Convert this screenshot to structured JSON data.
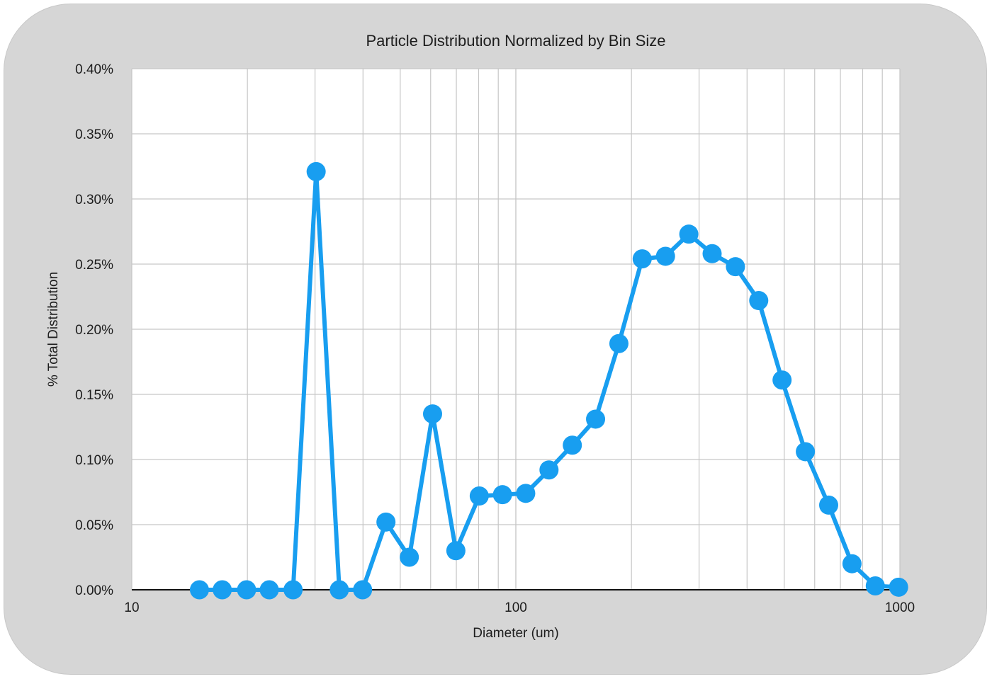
{
  "chart_data": {
    "type": "line",
    "title": "Particle Distribution Normalized by Bin Size",
    "xlabel": "Diameter (um)",
    "ylabel": "% Total Distribution",
    "xscale": "log",
    "xlim": [
      10,
      1000
    ],
    "ylim": [
      0,
      0.4
    ],
    "x_ticks": [
      10,
      100,
      1000
    ],
    "x_tick_labels": [
      "10",
      "100",
      "1000"
    ],
    "y_ticks": [
      0,
      0.05,
      0.1,
      0.15,
      0.2,
      0.25,
      0.3,
      0.35,
      0.4
    ],
    "y_tick_labels": [
      "0.00%",
      "0.05%",
      "0.10%",
      "0.15%",
      "0.20%",
      "0.25%",
      "0.30%",
      "0.35%",
      "0.40%"
    ],
    "grid": true,
    "color": "#189ef0",
    "series": [
      {
        "name": "% Total Distribution",
        "x": [
          15.0,
          17.2,
          19.9,
          22.8,
          26.3,
          30.2,
          34.7,
          39.9,
          45.9,
          52.8,
          60.7,
          69.8,
          80.3,
          92.3,
          106.1,
          122.0,
          140.3,
          161.3,
          185.5,
          213.3,
          245.3,
          282.1,
          324.4,
          373.1,
          429.0,
          493.4,
          567.4,
          652.5,
          750.4,
          862.9,
          992.3
        ],
        "y": [
          0.0,
          0.0,
          0.0,
          0.0,
          0.0,
          0.321,
          0.0,
          0.0,
          0.052,
          0.025,
          0.135,
          0.03,
          0.072,
          0.073,
          0.074,
          0.092,
          0.111,
          0.131,
          0.189,
          0.254,
          0.256,
          0.273,
          0.258,
          0.248,
          0.222,
          0.161,
          0.106,
          0.065,
          0.02,
          0.003,
          0.002
        ]
      }
    ]
  }
}
